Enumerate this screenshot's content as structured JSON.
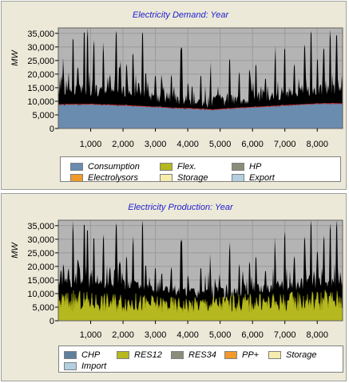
{
  "chart_data": [
    {
      "type": "area",
      "title": "Electricity Demand: Year",
      "ylabel": "MW",
      "xlabel": "",
      "xlim": [
        0,
        8784
      ],
      "ylim": [
        0,
        37000
      ],
      "x_ticks": [
        1000,
        2000,
        3000,
        4000,
        5000,
        6000,
        7000,
        8000
      ],
      "x_tick_labels": [
        "1,000",
        "2,000",
        "3,000",
        "4,000",
        "5,000",
        "6,000",
        "7,000",
        "8,000"
      ],
      "y_ticks": [
        0,
        5000,
        10000,
        15000,
        20000,
        25000,
        30000,
        35000
      ],
      "y_tick_labels": [
        "0",
        "5,000",
        "10,000",
        "15,000",
        "20,000",
        "25,000",
        "30,000",
        "35,000"
      ],
      "grid": true,
      "legend_position": "bottom",
      "legend": [
        {
          "name": "Consumption",
          "color": "#6a8caf"
        },
        {
          "name": "Flex.",
          "color": "#b5b81e"
        },
        {
          "name": "HP",
          "color": "#8c8c7a"
        },
        {
          "name": "Electrolysors",
          "color": "#ef9a2a"
        },
        {
          "name": "Storage",
          "color": "#f6ecac"
        },
        {
          "name": "Export",
          "color": "#b3cfe0"
        }
      ],
      "series": [
        {
          "name": "Consumption",
          "color": "#6a8caf",
          "x": [
            0,
            500,
            1000,
            1500,
            2000,
            2500,
            3000,
            3500,
            4000,
            4500,
            4800,
            5000,
            5500,
            6000,
            6500,
            7000,
            7500,
            8000,
            8500,
            8784
          ],
          "values": [
            8800,
            8900,
            8900,
            8700,
            8500,
            8200,
            7900,
            7600,
            7400,
            7100,
            6900,
            7100,
            7500,
            7800,
            8100,
            8500,
            8800,
            9100,
            9200,
            9100
          ]
        }
      ],
      "total_band": {
        "baseline": {
          "x": [
            0,
            1000,
            2000,
            2500,
            3000,
            4000,
            4500,
            5000,
            6000,
            7000,
            8000,
            8784
          ],
          "values": [
            13500,
            13200,
            12500,
            12000,
            11000,
            9800,
            8500,
            9000,
            10500,
            12000,
            13200,
            13500
          ]
        },
        "spike_peaks": [
          {
            "x": 150,
            "value": 21000
          },
          {
            "x": 450,
            "value": 33500
          },
          {
            "x": 600,
            "value": 23000
          },
          {
            "x": 800,
            "value": 36000
          },
          {
            "x": 900,
            "value": 34000
          },
          {
            "x": 1100,
            "value": 31000
          },
          {
            "x": 1400,
            "value": 27000
          },
          {
            "x": 1600,
            "value": 20000
          },
          {
            "x": 1800,
            "value": 36000
          },
          {
            "x": 1900,
            "value": 22000
          },
          {
            "x": 2100,
            "value": 24000
          },
          {
            "x": 2300,
            "value": 28000
          },
          {
            "x": 2600,
            "value": 35500
          },
          {
            "x": 2700,
            "value": 21000
          },
          {
            "x": 3000,
            "value": 20000
          },
          {
            "x": 3200,
            "value": 18000
          },
          {
            "x": 3500,
            "value": 20000
          },
          {
            "x": 3800,
            "value": 30000
          },
          {
            "x": 4000,
            "value": 17000
          },
          {
            "x": 4400,
            "value": 20000
          },
          {
            "x": 4700,
            "value": 19000
          },
          {
            "x": 4900,
            "value": 13000
          },
          {
            "x": 5300,
            "value": 26000
          },
          {
            "x": 5600,
            "value": 21000
          },
          {
            "x": 5900,
            "value": 22000
          },
          {
            "x": 6100,
            "value": 24000
          },
          {
            "x": 6400,
            "value": 19000
          },
          {
            "x": 6700,
            "value": 25000
          },
          {
            "x": 7000,
            "value": 30000
          },
          {
            "x": 7300,
            "value": 24000
          },
          {
            "x": 7600,
            "value": 31000
          },
          {
            "x": 7800,
            "value": 36000
          },
          {
            "x": 8000,
            "value": 26000
          },
          {
            "x": 8200,
            "value": 30000
          },
          {
            "x": 8400,
            "value": 34000
          },
          {
            "x": 8600,
            "value": 35000
          }
        ]
      }
    },
    {
      "type": "area",
      "title": "Electricity Production: Year",
      "ylabel": "MW",
      "xlabel": "",
      "xlim": [
        0,
        8784
      ],
      "ylim": [
        0,
        37000
      ],
      "x_ticks": [
        1000,
        2000,
        3000,
        4000,
        5000,
        6000,
        7000,
        8000
      ],
      "x_tick_labels": [
        "1,000",
        "2,000",
        "3,000",
        "4,000",
        "5,000",
        "6,000",
        "7,000",
        "8,000"
      ],
      "y_ticks": [
        0,
        5000,
        10000,
        15000,
        20000,
        25000,
        30000,
        35000
      ],
      "y_tick_labels": [
        "0",
        "5,000",
        "10,000",
        "15,000",
        "20,000",
        "25,000",
        "30,000",
        "35,000"
      ],
      "grid": true,
      "legend_position": "bottom",
      "legend": [
        {
          "name": "CHP",
          "color": "#5e7f9d"
        },
        {
          "name": "RES12",
          "color": "#b5b81e"
        },
        {
          "name": "RES34",
          "color": "#8c8c7a"
        },
        {
          "name": "PP+",
          "color": "#ef9a2a"
        },
        {
          "name": "Storage",
          "color": "#f6ecac"
        },
        {
          "name": "Import",
          "color": "#b3cfe0"
        }
      ],
      "series": [
        {
          "name": "RES12",
          "color": "#b5b81e",
          "x": [
            0,
            500,
            1000,
            1500,
            2000,
            2500,
            3000,
            3500,
            4000,
            4500,
            5000,
            5500,
            6000,
            6500,
            7000,
            7500,
            8000,
            8500,
            8784
          ],
          "values": [
            9500,
            9800,
            9400,
            9000,
            9200,
            8600,
            8200,
            7800,
            7600,
            8000,
            8400,
            8800,
            9000,
            8700,
            9200,
            9600,
            10000,
            10200,
            9800
          ]
        }
      ],
      "total_band": {
        "baseline": {
          "x": [
            0,
            1000,
            2000,
            2500,
            3000,
            4000,
            4500,
            5000,
            6000,
            7000,
            8000,
            8784
          ],
          "values": [
            13500,
            13200,
            12500,
            12000,
            11000,
            9800,
            8500,
            9000,
            10500,
            12000,
            13200,
            13500
          ]
        },
        "spike_peaks": [
          {
            "x": 150,
            "value": 21000
          },
          {
            "x": 450,
            "value": 33500
          },
          {
            "x": 600,
            "value": 23000
          },
          {
            "x": 800,
            "value": 36000
          },
          {
            "x": 900,
            "value": 34000
          },
          {
            "x": 1100,
            "value": 31000
          },
          {
            "x": 1400,
            "value": 27000
          },
          {
            "x": 1600,
            "value": 20000
          },
          {
            "x": 1800,
            "value": 36000
          },
          {
            "x": 1900,
            "value": 22000
          },
          {
            "x": 2100,
            "value": 24000
          },
          {
            "x": 2300,
            "value": 28000
          },
          {
            "x": 2600,
            "value": 35500
          },
          {
            "x": 2700,
            "value": 21000
          },
          {
            "x": 3000,
            "value": 20000
          },
          {
            "x": 3200,
            "value": 18000
          },
          {
            "x": 3500,
            "value": 20000
          },
          {
            "x": 3800,
            "value": 30000
          },
          {
            "x": 4000,
            "value": 17000
          },
          {
            "x": 4400,
            "value": 20000
          },
          {
            "x": 4700,
            "value": 19000
          },
          {
            "x": 4900,
            "value": 13000
          },
          {
            "x": 5300,
            "value": 26000
          },
          {
            "x": 5600,
            "value": 21000
          },
          {
            "x": 5900,
            "value": 22000
          },
          {
            "x": 6100,
            "value": 24000
          },
          {
            "x": 6400,
            "value": 19000
          },
          {
            "x": 6700,
            "value": 25000
          },
          {
            "x": 7000,
            "value": 30000
          },
          {
            "x": 7300,
            "value": 24000
          },
          {
            "x": 7600,
            "value": 31000
          },
          {
            "x": 7800,
            "value": 36000
          },
          {
            "x": 8000,
            "value": 26000
          },
          {
            "x": 8200,
            "value": 30000
          },
          {
            "x": 8400,
            "value": 34000
          },
          {
            "x": 8600,
            "value": 35000
          }
        ]
      }
    }
  ]
}
